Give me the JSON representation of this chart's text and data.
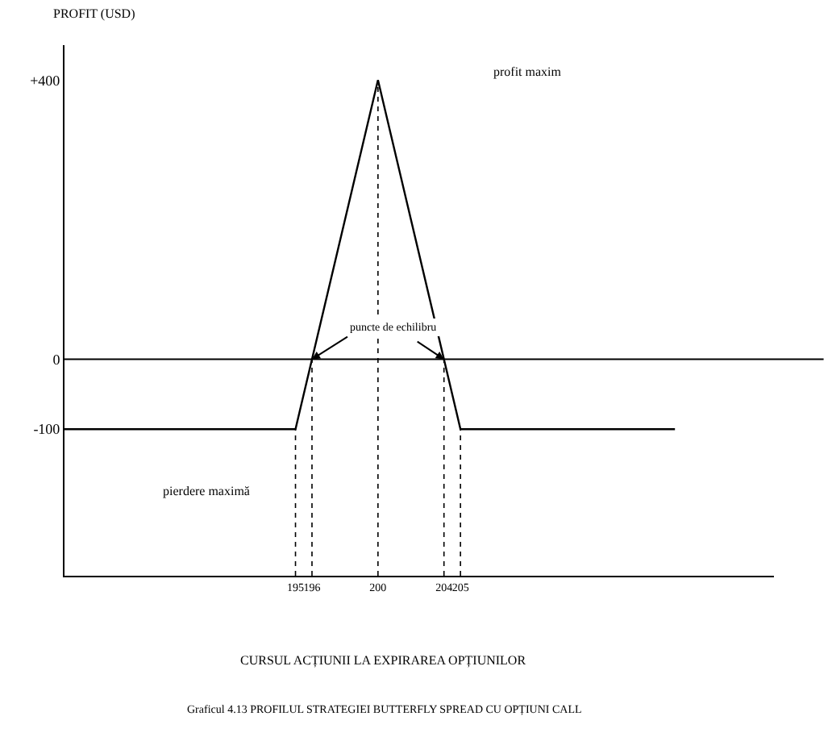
{
  "chart_data": {
    "type": "line",
    "ylabel": "PROFIT (USD)",
    "xlabel": "CURSUL ACȚIUNII LA EXPIRAREA OPȚIUNILOR",
    "x": [
      181,
      195,
      200,
      205,
      218
    ],
    "series": [
      {
        "color": "#000000",
        "values": [
          -100,
          -100,
          400,
          -100,
          -100
        ]
      }
    ],
    "xlim": [
      181,
      224
    ],
    "ylim": [
      -310,
      450
    ],
    "xticks": [
      195,
      196,
      200,
      204,
      205
    ],
    "yticks": [
      -100,
      0,
      {
        "value": 400,
        "label": "+400"
      }
    ],
    "ref_lines": [
      {
        "axis": "y",
        "value": 0,
        "color": "#000000",
        "line_style": "solid"
      },
      {
        "axis": "x",
        "value": 195,
        "color": "#000000",
        "line_style": "dotted"
      },
      {
        "axis": "x",
        "value": 196,
        "color": "#000000",
        "line_style": "dotted"
      },
      {
        "axis": "x",
        "value": 200,
        "color": "#000000",
        "line_style": "dotted"
      },
      {
        "axis": "x",
        "value": 204,
        "color": "#000000",
        "line_style": "dotted"
      },
      {
        "axis": "x",
        "value": 205,
        "color": "#000000",
        "line_style": "dotted"
      }
    ],
    "annotations": [
      "profit maxim",
      {
        "text": "puncte de echilibru",
        "x": 196,
        "y": 0
      },
      "pierdere maximă",
      "Graficul 4.13 PROFILUL STRATEGIEI BUTTERFLY SPREAD CU OPȚIUNI CALL"
    ],
    "marker": "none",
    "line_style": "solid"
  }
}
